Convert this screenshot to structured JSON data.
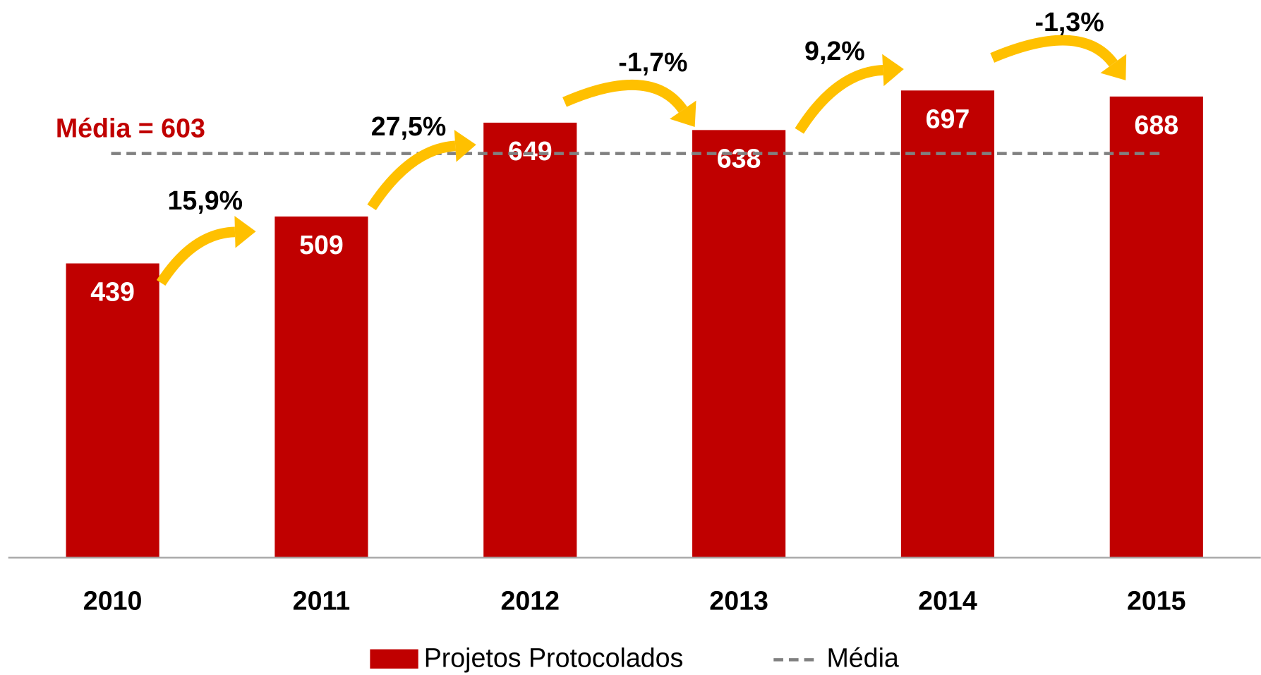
{
  "chart_data": {
    "type": "bar",
    "categories": [
      "2010",
      "2011",
      "2012",
      "2013",
      "2014",
      "2015"
    ],
    "series": [
      {
        "name": "Projetos Protocolados",
        "color": "#c00000",
        "values": [
          439,
          509,
          649,
          638,
          697,
          688
        ]
      }
    ],
    "average": {
      "name": "Média",
      "value": 603,
      "label": "Média = 603",
      "color": "#808080",
      "label_color": "#c00000"
    },
    "annotations": [
      "15,9%",
      "27,5%",
      "-1,7%",
      "9,2%",
      "-1,3%"
    ],
    "annotation_color": "#ffc000",
    "ylim": [
      0,
      832
    ]
  }
}
